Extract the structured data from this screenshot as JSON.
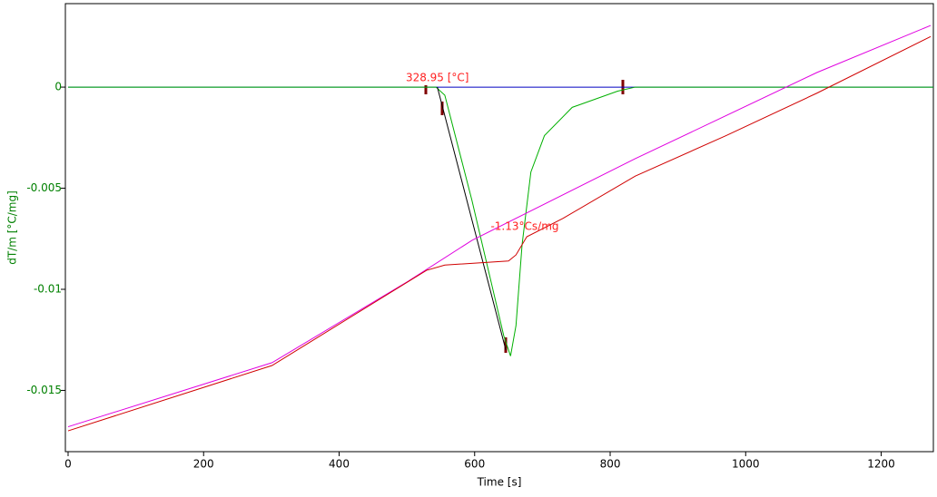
{
  "chart_data": {
    "type": "line",
    "xlabel": "Time [s]",
    "ylabel": "dT/m  [°C/mg]",
    "xlim": [
      -4,
      1277
    ],
    "ylim": [
      -0.01803,
      0.00413
    ],
    "xticks": [
      0,
      200,
      400,
      600,
      800,
      1000,
      1200
    ],
    "yticks": [
      0,
      -0.005,
      -0.01,
      -0.015
    ],
    "grid": false,
    "series": [
      {
        "name": "baseline",
        "color": "#0000c0",
        "x": [
          0,
          1277
        ],
        "values": [
          0,
          0
        ]
      },
      {
        "name": "signal",
        "color": "#00b000",
        "x": [
          0,
          543,
          556,
          596,
          643,
          653,
          661,
          670,
          683,
          703,
          744,
          811,
          837,
          1277
        ],
        "values": [
          0,
          0,
          -0.0004,
          -0.0056,
          -0.0123,
          -0.0133,
          -0.0118,
          -0.0078,
          -0.0042,
          -0.0024,
          -0.001,
          -0.0002,
          0,
          0
        ]
      },
      {
        "name": "tangent",
        "color": "#000000",
        "x": [
          545,
          646
        ],
        "values": [
          0,
          -0.013
        ]
      },
      {
        "name": "reference",
        "color": "#e000e0",
        "x": [
          0,
          301,
          502,
          596,
          837,
          1105,
          1273
        ],
        "values": [
          -0.0168,
          -0.01363,
          -0.0096,
          -0.00758,
          -0.00354,
          0.00072,
          0.00305
        ]
      },
      {
        "name": "temperature",
        "color": "#d00000",
        "x": [
          0,
          301,
          529,
          556,
          650,
          661,
          677,
          730,
          837,
          971,
          1105,
          1273
        ],
        "values": [
          -0.017,
          -0.01377,
          -0.00906,
          -0.0088,
          -0.0086,
          -0.0083,
          -0.0074,
          -0.0065,
          -0.0044,
          -0.0024,
          -0.0003,
          0.0025
        ]
      }
    ],
    "annotations": [
      {
        "text": "328.95 [°C]",
        "x": 545,
        "y": 0.00045
      },
      {
        "text": "-1.13°Cs/mg",
        "x": 674,
        "y": -0.0069
      }
    ]
  }
}
